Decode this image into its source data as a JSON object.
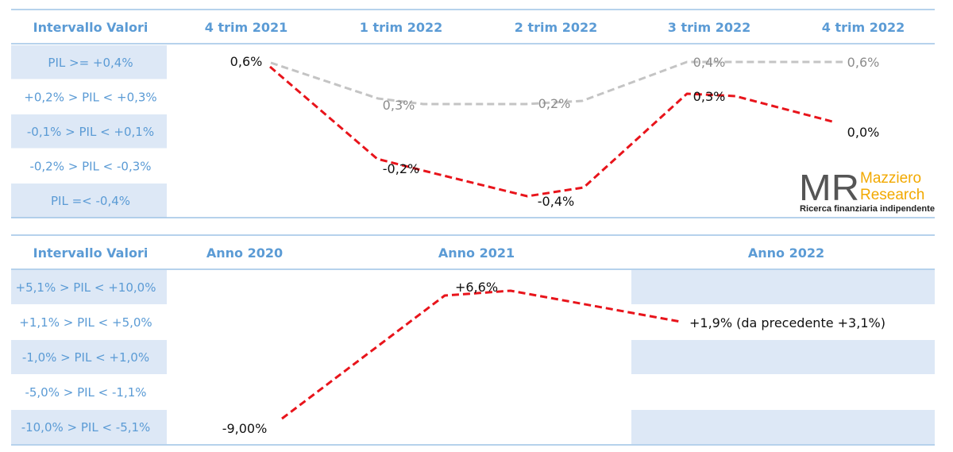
{
  "colors": {
    "header": "#5b9bd5",
    "band": "#dde8f6",
    "rule": "#9dc3e6",
    "forecast_current": "#e8141b",
    "forecast_previous": "#c4c4c4",
    "logo_accent": "#f2a900"
  },
  "logo": {
    "mark": "MR",
    "name_line1": "Mazziero",
    "name_line2": "Research",
    "tagline": "Ricerca finanziaria indipendente"
  },
  "chart_data": [
    {
      "type": "line",
      "header_label": "Intervallo Valori",
      "categories": [
        "4 trim 2021",
        "1 trim 2022",
        "2 trim 2022",
        "3 trim 2022",
        "4 trim 2022"
      ],
      "ranges": [
        "PIL >= +0,4%",
        "+0,2% > PIL < +0,3%",
        "-0,1% > PIL < +0,1%",
        "-0,2% > PIL < -0,3%",
        "PIL =< -0,4%"
      ],
      "series": [
        {
          "style": "red-dashed",
          "values": [
            0.6,
            -0.2,
            -0.4,
            0.3,
            0.0
          ],
          "labels": [
            "0,6%",
            "-0,2%",
            "-0,4%",
            "0,3%",
            "0,0%"
          ],
          "row_index": [
            0,
            3,
            4,
            1,
            2
          ]
        },
        {
          "style": "gray-dashed",
          "values": [
            0.6,
            0.3,
            0.2,
            0.4,
            0.6
          ],
          "labels": [
            "",
            "0,3%",
            "0,2%",
            "0,4%",
            "0,6%"
          ],
          "row_index": [
            0,
            1,
            1,
            0,
            0
          ]
        }
      ]
    },
    {
      "type": "line",
      "header_label": "Intervallo Valori",
      "categories": [
        "Anno 2020",
        "Anno 2021",
        "Anno 2022"
      ],
      "ranges": [
        "+5,1% > PIL < +10,0%",
        "+1,1% > PIL < +5,0%",
        "-1,0% > PIL < +1,0%",
        "-5,0% > PIL < -1,1%",
        "-10,0% > PIL < -5,1%"
      ],
      "series": [
        {
          "style": "red-dashed",
          "values": [
            -9.0,
            6.6,
            1.9
          ],
          "labels": [
            "-9,00%",
            "+6,6%",
            "+1,9% (da precedente +3,1%)"
          ],
          "row_index": [
            4,
            0,
            1
          ]
        }
      ]
    }
  ]
}
